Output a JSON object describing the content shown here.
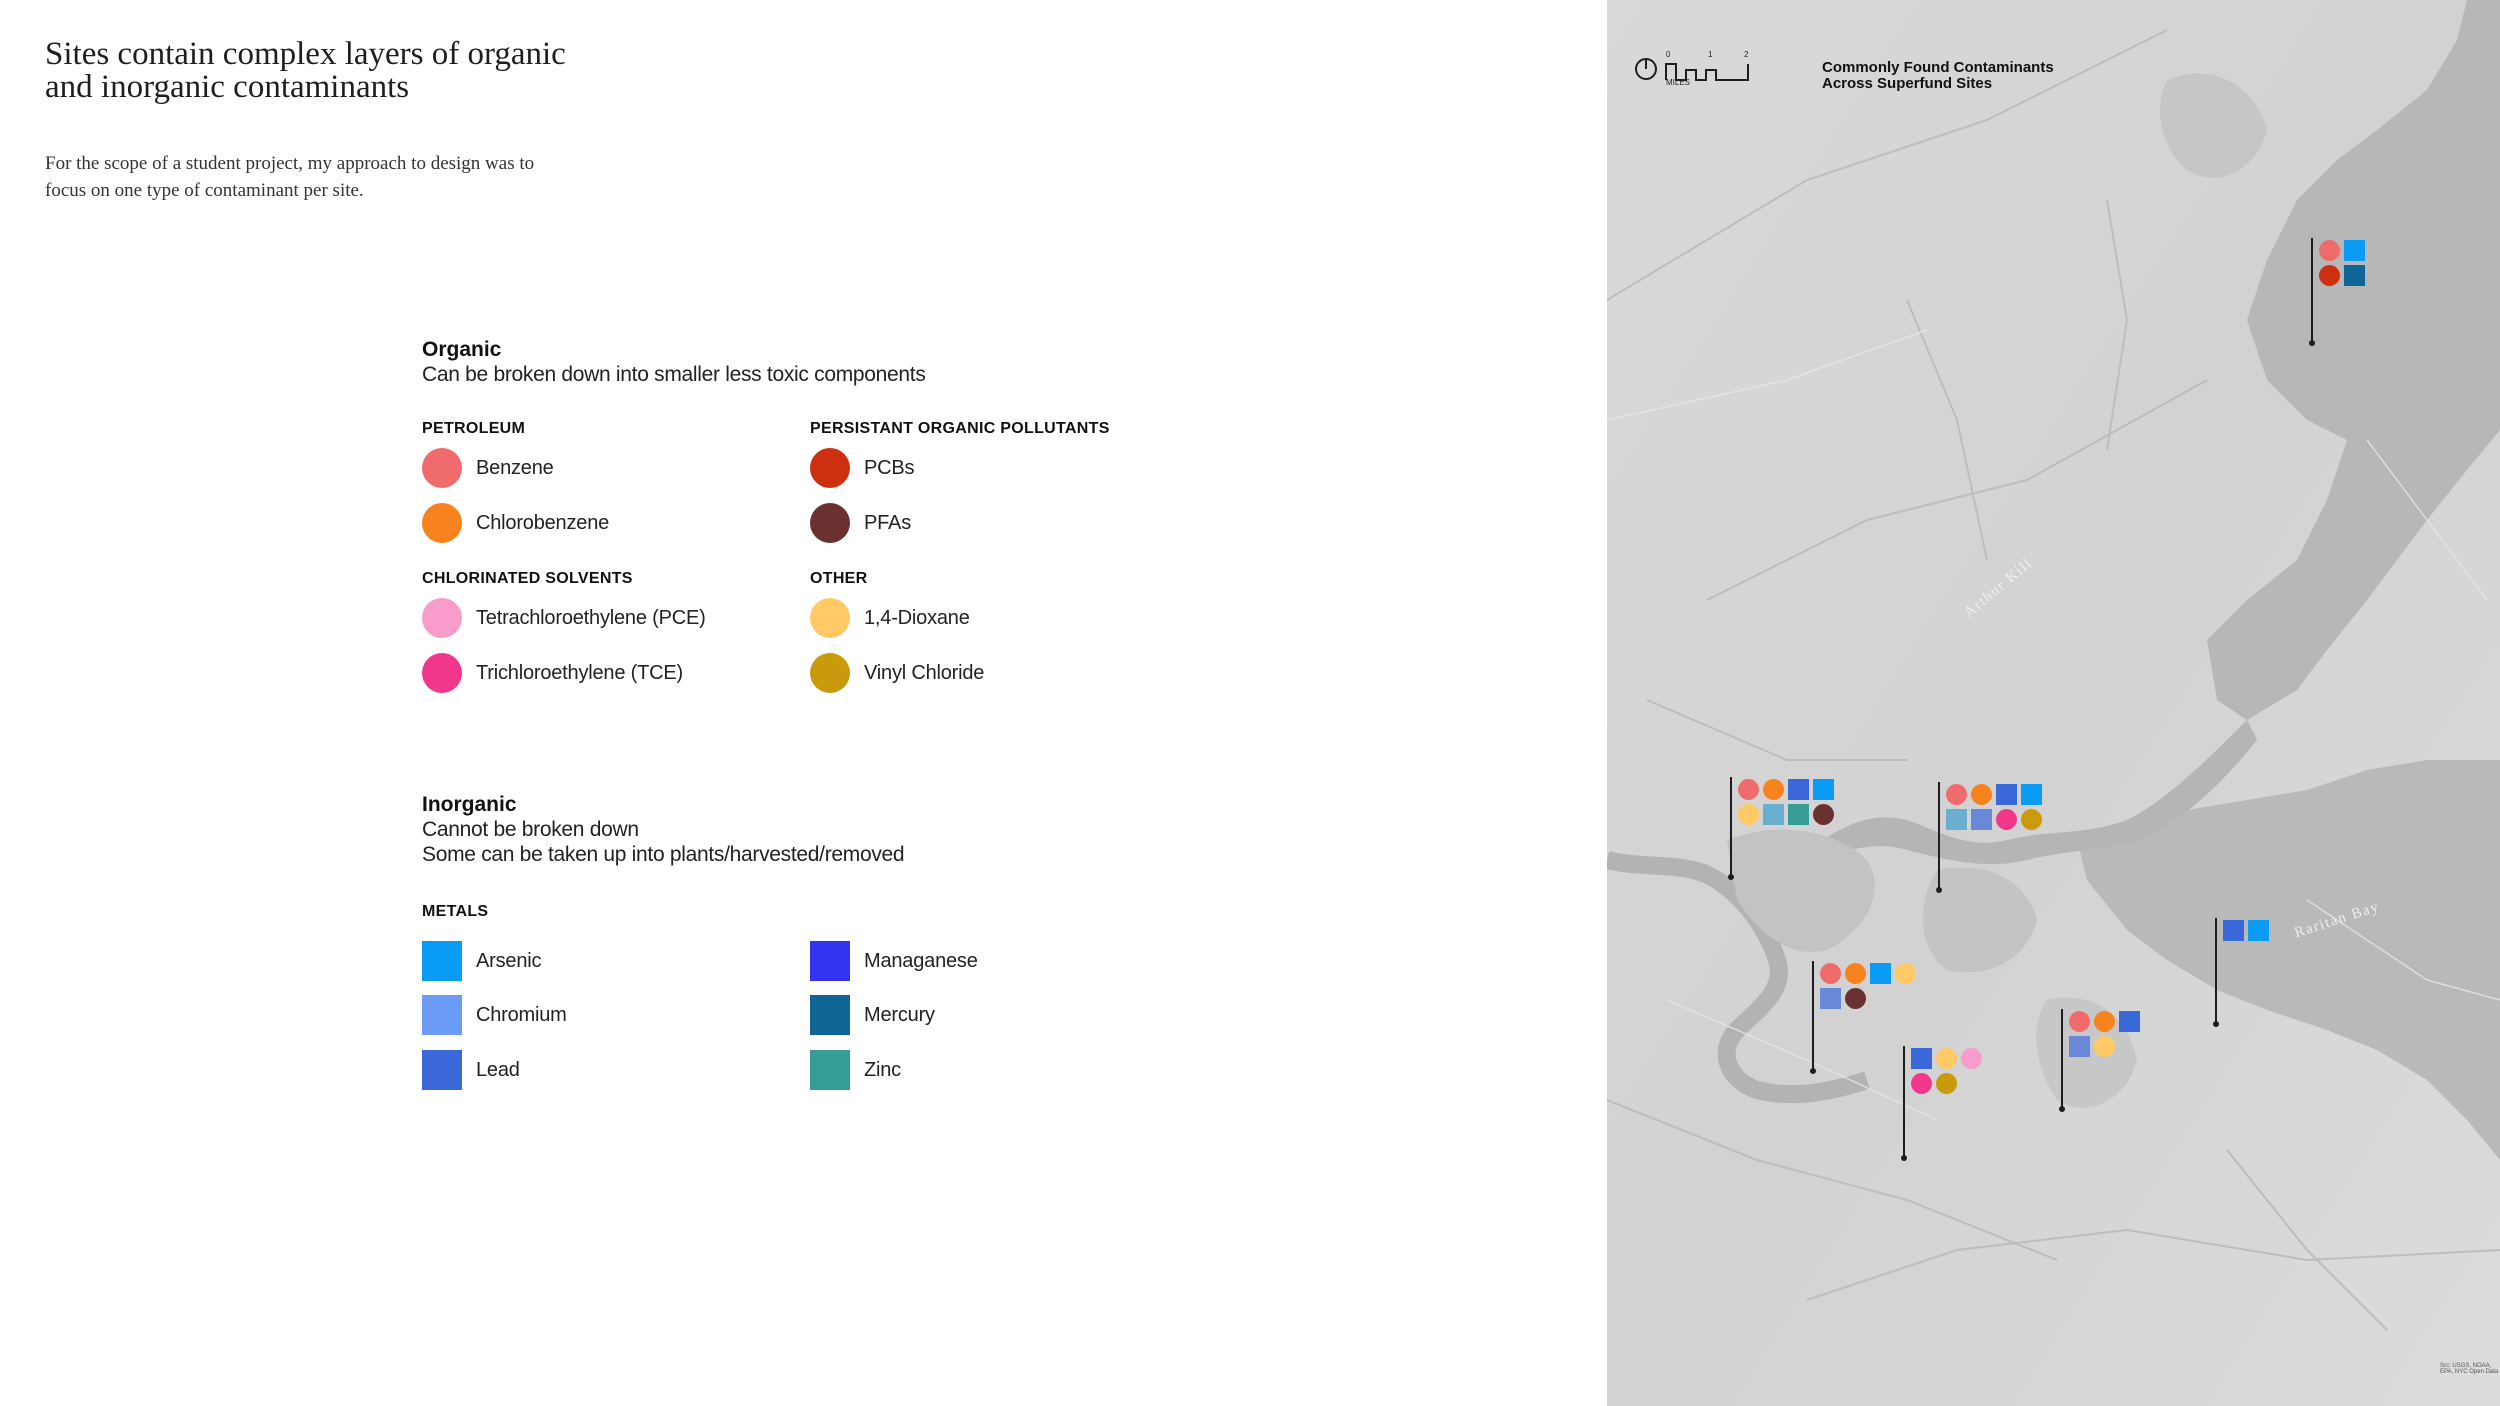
{
  "heading": {
    "line1": "Sites contain complex layers of organic",
    "line2": "and inorganic contaminants"
  },
  "intro": {
    "line1": "For the scope of a student project, my approach to design was to",
    "line2": "focus on one type of contaminant per site."
  },
  "organic": {
    "title": "Organic",
    "description": "Can be broken down into smaller less toxic components",
    "groups": {
      "petroleum": {
        "title": "PETROLEUM",
        "items": [
          {
            "label": "Benzene",
            "color": "#f06b6b"
          },
          {
            "label": "Chlorobenzene",
            "color": "#f7821e"
          }
        ]
      },
      "pops": {
        "title": "PERSISTANT ORGANIC POLLUTANTS",
        "items": [
          {
            "label": "PCBs",
            "color": "#cc3010"
          },
          {
            "label": "PFAs",
            "color": "#6b3030"
          }
        ]
      },
      "chlorinated": {
        "title": "CHLORINATED SOLVENTS",
        "items": [
          {
            "label": "Tetrachloroethylene (PCE)",
            "color": "#f79ccb"
          },
          {
            "label": "Trichloroethylene (TCE)",
            "color": "#f0378c"
          }
        ]
      },
      "other": {
        "title": "OTHER",
        "items": [
          {
            "label": "1,4-Dioxane",
            "color": "#ffca66"
          },
          {
            "label": "Vinyl Chloride",
            "color": "#c99a0c"
          }
        ]
      }
    }
  },
  "inorganic": {
    "title": "Inorganic",
    "description_line1": "Cannot be broken down",
    "description_line2": "Some can be taken up into plants/harvested/removed",
    "groups": {
      "metals": {
        "title": "METALS",
        "items": [
          {
            "label": "Arsenic",
            "color": "#0a9cf5"
          },
          {
            "label": "Chromium",
            "color": "#6a9cf5"
          },
          {
            "label": "Lead",
            "color": "#3a68d8"
          },
          {
            "label": "Managanese",
            "color": "#3434f0"
          },
          {
            "label": "Mercury",
            "color": "#0f6696"
          },
          {
            "label": "Zinc",
            "color": "#359c96"
          }
        ]
      }
    }
  },
  "map": {
    "title_line1": "Commonly Found Contaminants",
    "title_line2": "Across Superfund Sites",
    "scale_label": "MILES",
    "scale_ticks": [
      "0",
      "1",
      "2"
    ],
    "water_labels": [
      "Arthur Kill",
      "Raritan Bay"
    ],
    "footnote": "Src: USGS, NOAA, EPA, NYC Open Data",
    "sites": [
      {
        "markers": [
          [
            "circle",
            "#f06b6b"
          ],
          [
            "square",
            "#0a9cf5"
          ],
          [
            "circle",
            "#cc3010"
          ],
          [
            "square",
            "#0f6696"
          ]
        ]
      },
      {
        "markers": [
          [
            "circle",
            "#f06b6b"
          ],
          [
            "circle",
            "#f7821e"
          ],
          [
            "square",
            "#3a68d8"
          ],
          [
            "square",
            "#0a9cf5"
          ],
          [
            "circle",
            "#ffca66"
          ],
          [
            "square",
            "#6aaed0"
          ],
          [
            "square",
            "#359c96"
          ],
          [
            "circle",
            "#6b3030"
          ]
        ]
      },
      {
        "markers": [
          [
            "circle",
            "#f06b6b"
          ],
          [
            "circle",
            "#f7821e"
          ],
          [
            "square",
            "#3a68d8"
          ],
          [
            "square",
            "#0a9cf5"
          ],
          [
            "square",
            "#6aaed0"
          ],
          [
            "square",
            "#6a88d8"
          ],
          [
            "circle",
            "#f0378c"
          ],
          [
            "circle",
            "#c99a0c"
          ]
        ]
      },
      {
        "markers": [
          [
            "square",
            "#3a68d8"
          ],
          [
            "square",
            "#0a9cf5"
          ]
        ]
      },
      {
        "markers": [
          [
            "circle",
            "#f06b6b"
          ],
          [
            "circle",
            "#f7821e"
          ],
          [
            "square",
            "#0a9cf5"
          ],
          [
            "circle",
            "#ffca66"
          ],
          [
            "square",
            "#6a88d8"
          ],
          [
            "circle",
            "#6b3030"
          ]
        ]
      },
      {
        "markers": [
          [
            "square",
            "#3a68d8"
          ],
          [
            "circle",
            "#ffca66"
          ],
          [
            "circle",
            "#f79ccb"
          ],
          [
            "circle",
            "#f0378c"
          ],
          [
            "circle",
            "#c99a0c"
          ]
        ]
      },
      {
        "markers": [
          [
            "circle",
            "#f06b6b"
          ],
          [
            "circle",
            "#f7821e"
          ],
          [
            "square",
            "#3a68d8"
          ],
          [
            "square",
            "#6a88d8"
          ],
          [
            "circle",
            "#ffca66"
          ]
        ]
      }
    ]
  }
}
